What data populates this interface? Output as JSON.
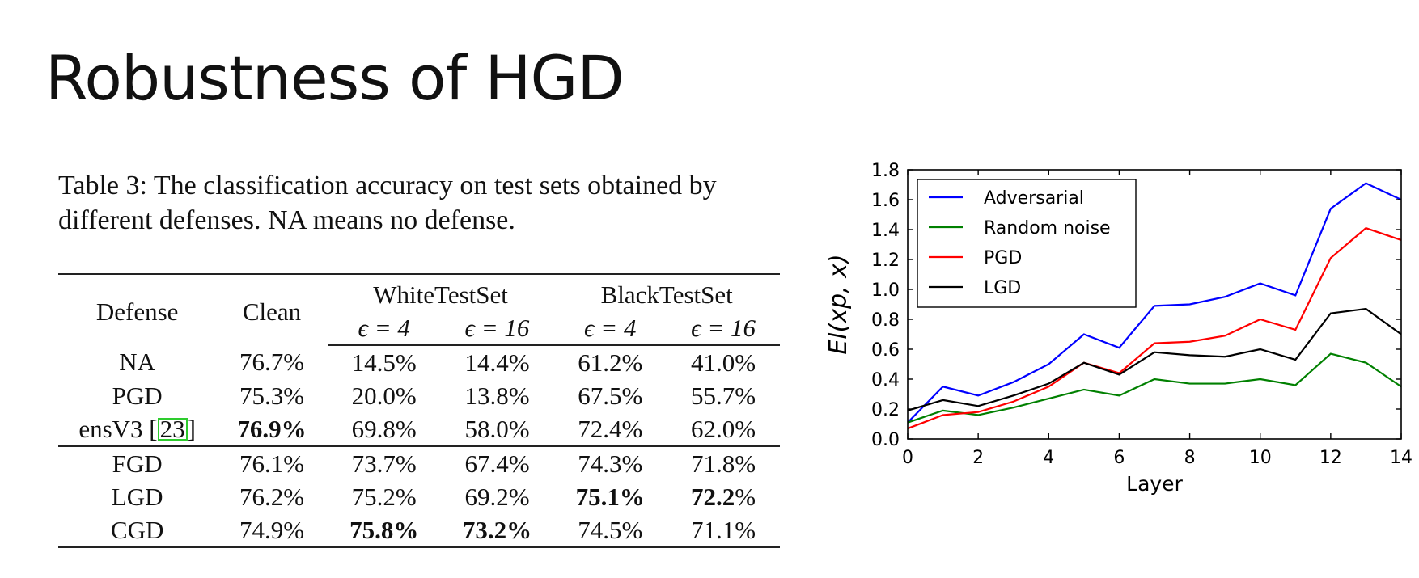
{
  "slide": {
    "title": "Robustness of HGD"
  },
  "table": {
    "caption_line1": "Table 3: The classification accuracy on test sets obtained by",
    "caption_line2": "different defenses. NA means no defense.",
    "headers": {
      "defense": "Defense",
      "clean": "Clean",
      "white": "WhiteTestSet",
      "black": "BlackTestSet",
      "eps4": "ϵ = 4",
      "eps16": "ϵ = 16"
    },
    "rows": [
      {
        "defense": "NA",
        "ref": "",
        "clean": "76.7%",
        "w4": "14.5%",
        "w16": "14.4%",
        "b4": "61.2%",
        "b16": "41.0%"
      },
      {
        "defense": "PGD",
        "ref": "",
        "clean": "75.3%",
        "w4": "20.0%",
        "w16": "13.8%",
        "b4": "67.5%",
        "b16": "55.7%"
      },
      {
        "defense": "ensV3 [",
        "ref": "23",
        "ref_close": "]",
        "clean": "76.9%",
        "w4": "69.8%",
        "w16": "58.0%",
        "b4": "72.4%",
        "b16": "62.0%"
      },
      {
        "defense": "FGD",
        "ref": "",
        "clean": "76.1%",
        "w4": "73.7%",
        "w16": "67.4%",
        "b4": "74.3%",
        "b16": "71.8%"
      },
      {
        "defense": "LGD",
        "ref": "",
        "clean": "76.2%",
        "w4": "75.2%",
        "w16": "69.2%",
        "b4": "75.1%",
        "b16_bold": "72.2",
        "b16_rest": "%"
      },
      {
        "defense": "CGD",
        "ref": "",
        "clean": "74.9%",
        "w4": "75.8%",
        "w16": "73.2%",
        "b4": "74.5%",
        "b16": "71.1%"
      }
    ],
    "ref_box_color": "#2ecc2e"
  },
  "chart_data": {
    "type": "line",
    "xlabel": "Layer",
    "ylabel": "El(xp, x)",
    "xlim": [
      0,
      14
    ],
    "ylim": [
      0.0,
      1.8
    ],
    "xticks": [
      0,
      2,
      4,
      6,
      8,
      10,
      12,
      14
    ],
    "yticks": [
      "0.0",
      "0.2",
      "0.4",
      "0.6",
      "0.8",
      "1.0",
      "1.2",
      "1.4",
      "1.6",
      "1.8"
    ],
    "legend_position": "top-left",
    "x": [
      0,
      1,
      2,
      3,
      4,
      5,
      6,
      7,
      8,
      9,
      10,
      11,
      12,
      13,
      14
    ],
    "series": [
      {
        "name": "Adversarial",
        "color": "#0000ff",
        "values": [
          0.11,
          0.35,
          0.29,
          0.38,
          0.5,
          0.7,
          0.61,
          0.89,
          0.9,
          0.95,
          1.04,
          0.96,
          1.54,
          1.71,
          1.6
        ]
      },
      {
        "name": "Random noise",
        "color": "#008000",
        "values": [
          0.11,
          0.19,
          0.16,
          0.21,
          0.27,
          0.33,
          0.29,
          0.4,
          0.37,
          0.37,
          0.4,
          0.36,
          0.57,
          0.51,
          0.35
        ]
      },
      {
        "name": "PGD",
        "color": "#ff0000",
        "values": [
          0.07,
          0.16,
          0.18,
          0.25,
          0.35,
          0.51,
          0.44,
          0.64,
          0.65,
          0.69,
          0.8,
          0.73,
          1.21,
          1.41,
          1.33
        ]
      },
      {
        "name": "LGD",
        "color": "#000000",
        "values": [
          0.19,
          0.26,
          0.22,
          0.29,
          0.37,
          0.51,
          0.43,
          0.58,
          0.56,
          0.55,
          0.6,
          0.53,
          0.84,
          0.87,
          0.7
        ]
      }
    ]
  }
}
